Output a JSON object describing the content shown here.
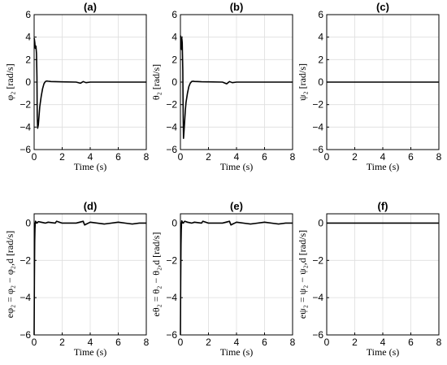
{
  "chart_data": [
    {
      "type": "line",
      "title": "(a)",
      "xlabel": "Time (s)",
      "ylabel": "φ₂ [rad/s]",
      "xlim": [
        0,
        8
      ],
      "ylim": [
        -6,
        6
      ],
      "xticks": [
        0,
        2,
        4,
        6,
        8
      ],
      "yticks": [
        -6,
        -4,
        -2,
        0,
        2,
        4,
        6
      ],
      "grid": true,
      "x": [
        0,
        0.02,
        0.05,
        0.08,
        0.1,
        0.13,
        0.17,
        0.2,
        0.22,
        0.25,
        0.3,
        0.35,
        0.4,
        0.5,
        0.6,
        0.7,
        0.8,
        0.9,
        1.0,
        1.2,
        1.5,
        2.0,
        3.0,
        3.3,
        3.5,
        3.7,
        4.0,
        5.0,
        6.0,
        8.0
      ],
      "y": [
        3.9,
        3.8,
        3.5,
        3.0,
        3.1,
        3.2,
        2.5,
        0.5,
        -3.0,
        -4.1,
        -3.8,
        -3.0,
        -2.2,
        -1.3,
        -0.6,
        -0.15,
        0.05,
        0.1,
        0.08,
        0.05,
        0.04,
        0.02,
        0.0,
        -0.1,
        0.05,
        -0.05,
        0.0,
        0.0,
        0.0,
        0.0
      ]
    },
    {
      "type": "line",
      "title": "(b)",
      "xlabel": "Time (s)",
      "ylabel": "θ₂ [rad/s]",
      "xlim": [
        0,
        8
      ],
      "ylim": [
        -6,
        6
      ],
      "xticks": [
        0,
        2,
        4,
        6,
        8
      ],
      "yticks": [
        -6,
        -4,
        -2,
        0,
        2,
        4,
        6
      ],
      "grid": true,
      "x": [
        0,
        0.02,
        0.05,
        0.08,
        0.1,
        0.13,
        0.17,
        0.2,
        0.22,
        0.25,
        0.3,
        0.35,
        0.4,
        0.5,
        0.6,
        0.7,
        0.8,
        0.9,
        1.0,
        1.2,
        1.5,
        2.0,
        3.0,
        3.3,
        3.5,
        3.7,
        4.0,
        5.0,
        6.0,
        8.0
      ],
      "y": [
        4.0,
        4.1,
        3.6,
        2.9,
        3.9,
        3.5,
        1.0,
        -3.5,
        -5.0,
        -4.5,
        -3.5,
        -2.5,
        -1.8,
        -1.0,
        -0.4,
        -0.1,
        0.05,
        0.08,
        0.06,
        0.05,
        0.03,
        0.02,
        0.0,
        -0.15,
        0.05,
        -0.05,
        0.0,
        0.0,
        0.0,
        0.0
      ]
    },
    {
      "type": "line",
      "title": "(c)",
      "xlabel": "Time (s)",
      "ylabel": "ψ₂ [rad/s]",
      "xlim": [
        0,
        8
      ],
      "ylim": [
        -6,
        6
      ],
      "xticks": [
        0,
        2,
        4,
        6,
        8
      ],
      "yticks": [
        -6,
        -4,
        -2,
        0,
        2,
        4,
        6
      ],
      "grid": true,
      "x": [
        0,
        8
      ],
      "y": [
        0,
        0
      ]
    },
    {
      "type": "line",
      "title": "(d)",
      "xlabel": "Time (s)",
      "ylabel": "eφ₂ = φ₂ − φ₂,d [rad/s]",
      "xlim": [
        0,
        8
      ],
      "ylim": [
        -6,
        0.5
      ],
      "xticks": [
        0,
        2,
        4,
        6,
        8
      ],
      "yticks": [
        -6,
        -4,
        -2,
        0
      ],
      "grid": true,
      "x": [
        0,
        0.02,
        0.04,
        0.06,
        0.08,
        0.1,
        0.15,
        0.2,
        0.3,
        0.5,
        0.8,
        1.0,
        1.5,
        1.6,
        2.0,
        3.0,
        3.5,
        3.6,
        4.0,
        5.0,
        6.0,
        7.0,
        7.5,
        8.0
      ],
      "y": [
        -6.0,
        -3.0,
        -1.0,
        -0.3,
        0.0,
        0.1,
        0.05,
        0.0,
        0.08,
        0.05,
        0.0,
        0.05,
        0.0,
        0.1,
        0.0,
        0.0,
        0.1,
        -0.1,
        0.05,
        -0.05,
        0.05,
        -0.05,
        0.0,
        0.0
      ]
    },
    {
      "type": "line",
      "title": "(e)",
      "xlabel": "Time (s)",
      "ylabel": "eθ₂ = θ₂ − θ₂,d [rad/s]",
      "xlim": [
        0,
        8
      ],
      "ylim": [
        -6,
        0.5
      ],
      "xticks": [
        0,
        2,
        4,
        6,
        8
      ],
      "yticks": [
        -6,
        -4,
        -2,
        0
      ],
      "grid": true,
      "x": [
        0,
        0.02,
        0.04,
        0.06,
        0.08,
        0.1,
        0.15,
        0.2,
        0.3,
        0.5,
        0.8,
        1.0,
        1.5,
        1.6,
        2.0,
        3.0,
        3.5,
        3.6,
        4.0,
        5.0,
        6.0,
        7.0,
        7.5,
        8.0
      ],
      "y": [
        -6.0,
        -3.2,
        -1.2,
        -0.4,
        0.0,
        0.12,
        0.05,
        0.0,
        0.1,
        0.05,
        0.0,
        0.05,
        0.0,
        0.1,
        0.0,
        0.0,
        0.1,
        -0.1,
        0.05,
        -0.05,
        0.05,
        -0.05,
        0.0,
        0.0
      ]
    },
    {
      "type": "line",
      "title": "(f)",
      "xlabel": "Time (s)",
      "ylabel": "eψ₂ = ψ₂ − ψ₂,d [rad/s]",
      "xlim": [
        0,
        8
      ],
      "ylim": [
        -6,
        0.5
      ],
      "xticks": [
        0,
        2,
        4,
        6,
        8
      ],
      "yticks": [
        -6,
        -4,
        -2,
        0
      ],
      "grid": true,
      "x": [
        0,
        8
      ],
      "y": [
        0,
        0
      ]
    }
  ]
}
